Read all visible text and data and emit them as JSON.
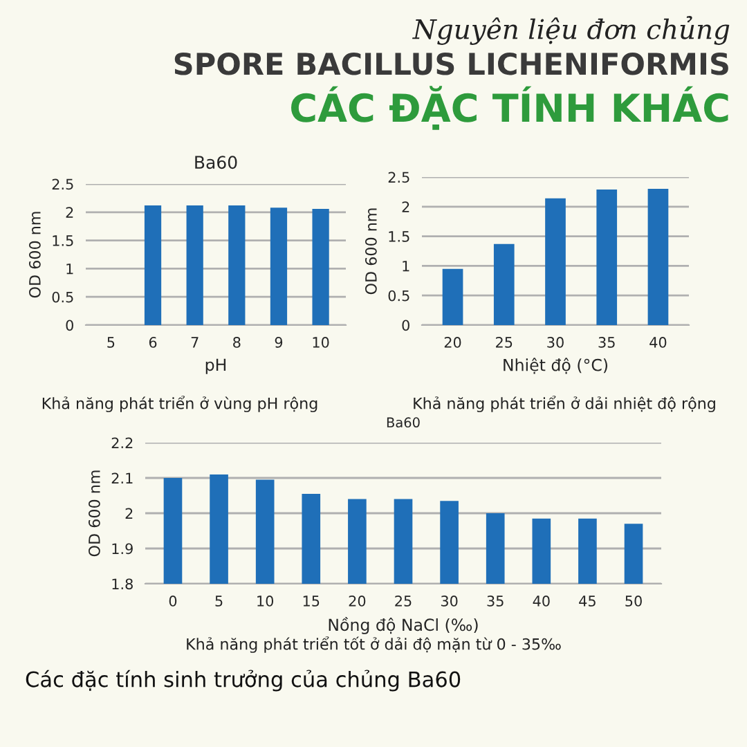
{
  "chart_data": [
    {
      "type": "bar",
      "title": "Ba60",
      "xlabel": "pH",
      "ylabel": "OD 600 nm",
      "categories": [
        "5",
        "6",
        "7",
        "8",
        "9",
        "10"
      ],
      "values": [
        0,
        2.12,
        2.12,
        2.12,
        2.08,
        2.06
      ],
      "color": "#1f6fb8",
      "ylim": [
        0,
        2.5
      ],
      "yticks": [
        0,
        0.5,
        1,
        1.5,
        2,
        2.5
      ],
      "grid": "y",
      "annotations": [
        "Nguyên liệu đơn chủng",
        "SPORE BACILLUS LICHENIFORMIS",
        "CÁC ĐẶC TÍNH KHÁC",
        "Khả năng phát triển ở vùng pH rộng"
      ]
    },
    {
      "type": "bar",
      "xlabel": "Nhiệt độ (°C)",
      "ylabel": "OD 600 nm",
      "categories": [
        "20",
        "25",
        "30",
        "35",
        "40"
      ],
      "values": [
        0.95,
        1.37,
        2.14,
        2.29,
        2.3
      ],
      "color": "#1f6fb8",
      "ylim": [
        0,
        2.5
      ],
      "yticks": [
        0,
        0.5,
        1,
        1.5,
        2,
        2.5
      ],
      "grid": "y",
      "annotations": [
        "Khả năng phát triển ở dải nhiệt độ rộng"
      ]
    },
    {
      "type": "bar",
      "title": "Ba60",
      "xlabel": "Nồng độ NaCl (‰)",
      "ylabel": "OD 600 nm",
      "categories": [
        "0",
        "5",
        "10",
        "15",
        "20",
        "25",
        "30",
        "35",
        "40",
        "45",
        "50"
      ],
      "values": [
        2.1,
        2.11,
        2.095,
        2.055,
        2.04,
        2.04,
        2.035,
        2.0,
        1.985,
        1.985,
        1.97
      ],
      "color": "#1f6fb8",
      "ylim": [
        1.8,
        2.2
      ],
      "yticks": [
        1.8,
        1.9,
        2,
        2.1,
        2.2
      ],
      "grid": "y",
      "annotations": [
        "Khả năng phát triển tốt ở dải độ mặn từ 0 - 35‰",
        "Các đặc tính sinh trưởng của chủng Ba60"
      ]
    }
  ]
}
